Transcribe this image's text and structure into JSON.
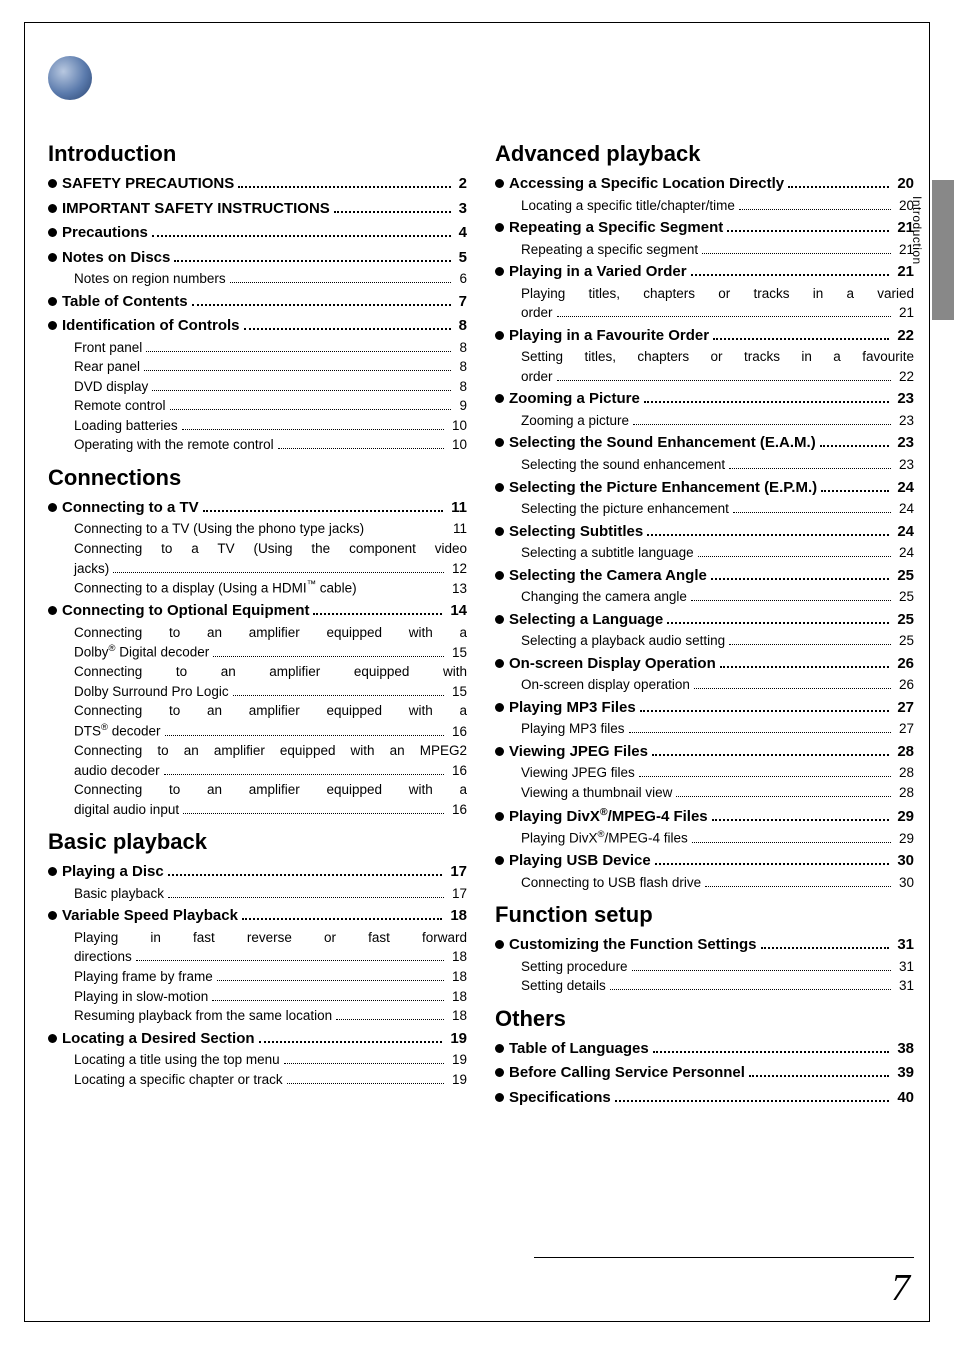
{
  "page": {
    "title": "Table of Contents",
    "side_tab_label": "Introduction",
    "page_number": "7",
    "title_bullet_gradient": [
      "#b8c8e0",
      "#5a7aac",
      "#28426e"
    ],
    "title_plate_bg": "#5a7aac"
  },
  "left": {
    "sections": [
      {
        "head": "Introduction",
        "items": [
          {
            "t": "top",
            "label": "SAFETY PRECAUTIONS",
            "page": "2"
          },
          {
            "t": "top",
            "label": "IMPORTANT SAFETY INSTRUCTIONS",
            "page": "3"
          },
          {
            "t": "top",
            "label": "Precautions",
            "page": "4"
          },
          {
            "t": "top",
            "label": "Notes on Discs",
            "page": "5"
          },
          {
            "t": "sub",
            "label": "Notes on region numbers",
            "page": "6"
          },
          {
            "t": "top",
            "label": "Table of Contents",
            "page": "7"
          },
          {
            "t": "top",
            "label": "Identification of Controls",
            "page": "8"
          },
          {
            "t": "sub",
            "label": "Front panel",
            "page": "8"
          },
          {
            "t": "sub",
            "label": "Rear panel",
            "page": "8"
          },
          {
            "t": "sub",
            "label": "DVD display",
            "page": "8"
          },
          {
            "t": "sub",
            "label": "Remote control",
            "page": "9"
          },
          {
            "t": "sub",
            "label": "Loading batteries",
            "page": "10"
          },
          {
            "t": "sub",
            "label": "Operating with the remote control",
            "page": "10"
          }
        ]
      },
      {
        "head": "Connections",
        "items": [
          {
            "t": "top",
            "label": "Connecting to a TV",
            "page": "11"
          },
          {
            "t": "sub",
            "label": "Connecting to a TV (Using the phono type jacks)",
            "page": "11",
            "nodots": true
          },
          {
            "t": "sub",
            "wrap": true,
            "line1": "Connecting to a TV (Using the component video",
            "line2_label": "jacks)",
            "page": "12"
          },
          {
            "t": "sub",
            "label": "Connecting to a display (Using a HDMI™ cable)",
            "page": "13",
            "nodots": true
          },
          {
            "t": "top",
            "label": "Connecting to Optional Equipment",
            "page": "14"
          },
          {
            "t": "sub",
            "wrap": true,
            "line1": "Connecting to an amplifier equipped with a",
            "line2_label": "Dolby® Digital decoder",
            "page": "15"
          },
          {
            "t": "sub",
            "wrap": true,
            "line1": "Connecting to an amplifier equipped with",
            "line2_label": "Dolby Surround Pro Logic",
            "page": "15"
          },
          {
            "t": "sub",
            "wrap": true,
            "line1": "Connecting to an amplifier equipped with a",
            "line2_label": "DTS® decoder",
            "page": "16"
          },
          {
            "t": "sub",
            "wrap": true,
            "line1": "Connecting to an amplifier equipped with an MPEG2",
            "line2_label": "audio decoder",
            "page": "16"
          },
          {
            "t": "sub",
            "wrap": true,
            "line1": "Connecting to an amplifier equipped with a",
            "line2_label": "digital audio input",
            "page": "16"
          }
        ]
      },
      {
        "head": "Basic playback",
        "items": [
          {
            "t": "top",
            "label": "Playing a Disc",
            "page": "17"
          },
          {
            "t": "sub",
            "label": "Basic playback",
            "page": "17"
          },
          {
            "t": "top",
            "label": "Variable Speed Playback",
            "page": "18"
          },
          {
            "t": "sub",
            "wrap": true,
            "line1": "Playing in fast reverse or fast forward",
            "line2_label": "directions",
            "page": "18"
          },
          {
            "t": "sub",
            "label": "Playing frame by frame",
            "page": "18"
          },
          {
            "t": "sub",
            "label": "Playing in slow-motion",
            "page": "18"
          },
          {
            "t": "sub",
            "label": "Resuming playback from the same location",
            "page": "18"
          },
          {
            "t": "top",
            "label": "Locating a Desired Section",
            "page": "19"
          },
          {
            "t": "sub",
            "label": "Locating a title using the top menu",
            "page": "19"
          },
          {
            "t": "sub",
            "label": "Locating a specific chapter or track",
            "page": "19"
          }
        ]
      }
    ]
  },
  "right": {
    "sections": [
      {
        "head": "Advanced playback",
        "items": [
          {
            "t": "top",
            "label": "Accessing a Specific Location Directly",
            "page": "20"
          },
          {
            "t": "sub",
            "label": "Locating a specific title/chapter/time",
            "page": "20"
          },
          {
            "t": "top",
            "label": "Repeating a Specific Segment",
            "page": "21"
          },
          {
            "t": "sub",
            "label": "Repeating a specific segment",
            "page": "21"
          },
          {
            "t": "top",
            "label": "Playing in a Varied Order",
            "page": "21"
          },
          {
            "t": "sub",
            "wrap": true,
            "line1": "Playing titles, chapters or tracks in a varied",
            "line2_label": "order",
            "page": "21"
          },
          {
            "t": "top",
            "label": "Playing in a Favourite Order",
            "page": "22"
          },
          {
            "t": "sub",
            "wrap": true,
            "line1": "Setting titles, chapters or tracks in a favourite",
            "line2_label": "order",
            "page": "22"
          },
          {
            "t": "top",
            "label": "Zooming a Picture",
            "page": "23"
          },
          {
            "t": "sub",
            "label": "Zooming a picture",
            "page": "23"
          },
          {
            "t": "top",
            "label": "Selecting the Sound Enhancement (E.A.M.)",
            "page": "23"
          },
          {
            "t": "sub",
            "label": "Selecting the sound enhancement",
            "page": "23"
          },
          {
            "t": "top",
            "label": "Selecting the Picture Enhancement (E.P.M.)",
            "page": "24"
          },
          {
            "t": "sub",
            "label": "Selecting the picture enhancement",
            "page": "24"
          },
          {
            "t": "top",
            "label": "Selecting Subtitles",
            "page": "24"
          },
          {
            "t": "sub",
            "label": "Selecting a subtitle language",
            "page": "24"
          },
          {
            "t": "top",
            "label": "Selecting the Camera Angle",
            "page": "25"
          },
          {
            "t": "sub",
            "label": "Changing the camera angle",
            "page": "25"
          },
          {
            "t": "top",
            "label": "Selecting a Language",
            "page": "25"
          },
          {
            "t": "sub",
            "label": "Selecting a playback audio setting",
            "page": "25"
          },
          {
            "t": "top",
            "label": "On-screen Display Operation",
            "page": "26"
          },
          {
            "t": "sub",
            "label": "On-screen display operation",
            "page": "26"
          },
          {
            "t": "top",
            "label": "Playing MP3 Files",
            "page": "27"
          },
          {
            "t": "sub",
            "label": "Playing MP3 files",
            "page": "27"
          },
          {
            "t": "top",
            "label": "Viewing JPEG Files",
            "page": "28"
          },
          {
            "t": "sub",
            "label": "Viewing JPEG files",
            "page": "28"
          },
          {
            "t": "sub",
            "label": "Viewing a thumbnail view",
            "page": "28"
          },
          {
            "t": "top",
            "label": "Playing DivX®/MPEG-4 Files",
            "page": "29"
          },
          {
            "t": "sub",
            "label": "Playing DivX®/MPEG-4 files",
            "page": "29"
          },
          {
            "t": "top",
            "label": "Playing USB Device",
            "page": "30"
          },
          {
            "t": "sub",
            "label": "Connecting to USB flash drive",
            "page": "30"
          }
        ]
      },
      {
        "head": "Function setup",
        "items": [
          {
            "t": "top",
            "label": "Customizing the Function Settings",
            "page": "31"
          },
          {
            "t": "sub",
            "label": "Setting procedure",
            "page": "31"
          },
          {
            "t": "sub",
            "label": "Setting details",
            "page": "31"
          }
        ]
      },
      {
        "head": "Others",
        "items": [
          {
            "t": "top",
            "label": "Table of Languages",
            "page": "38"
          },
          {
            "t": "top",
            "label": "Before Calling Service Personnel",
            "page": "39"
          },
          {
            "t": "top",
            "label": "Specifications",
            "page": "40"
          }
        ]
      }
    ]
  }
}
